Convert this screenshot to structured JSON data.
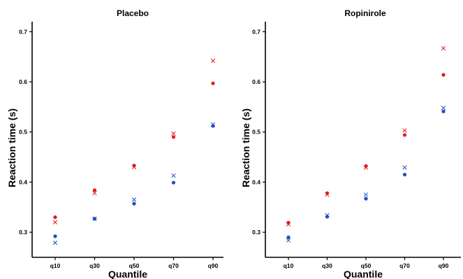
{
  "chart_data": [
    {
      "type": "scatter",
      "title": "Placebo",
      "xlabel": "Quantile",
      "ylabel": "Reaction time (s)",
      "categories": [
        "q10",
        "q30",
        "q50",
        "q70",
        "q90"
      ],
      "ylim": [
        0.25,
        0.72
      ],
      "yticks": [
        0.3,
        0.4,
        0.5,
        0.6,
        0.7
      ],
      "yticklabels": [
        "0.3",
        "0.4",
        "0.5",
        "0.6",
        "0.7"
      ],
      "grid": false,
      "series": [
        {
          "marker": "circle",
          "color": "#e41a1c",
          "values": [
            0.33,
            0.384,
            0.433,
            0.49,
            0.597
          ]
        },
        {
          "marker": "cross",
          "color": "#e41a1c",
          "values": [
            0.32,
            0.378,
            0.43,
            0.497,
            0.642
          ]
        },
        {
          "marker": "circle",
          "color": "#1f4fbf",
          "values": [
            0.292,
            0.327,
            0.357,
            0.399,
            0.512
          ]
        },
        {
          "marker": "cross",
          "color": "#1f4fbf",
          "values": [
            0.279,
            0.327,
            0.365,
            0.413,
            0.515
          ]
        }
      ]
    },
    {
      "type": "scatter",
      "title": "Ropinirole",
      "xlabel": "Quantile",
      "ylabel": "Reaction time (s)",
      "categories": [
        "q10",
        "q30",
        "q50",
        "q70",
        "q90"
      ],
      "ylim": [
        0.25,
        0.72
      ],
      "yticks": [
        0.3,
        0.4,
        0.5,
        0.6,
        0.7
      ],
      "yticklabels": [
        "0.3",
        "0.4",
        "0.5",
        "0.6",
        "0.7"
      ],
      "grid": false,
      "series": [
        {
          "marker": "circle",
          "color": "#e41a1c",
          "values": [
            0.319,
            0.378,
            0.432,
            0.494,
            0.614
          ]
        },
        {
          "marker": "cross",
          "color": "#e41a1c",
          "values": [
            0.316,
            0.375,
            0.429,
            0.503,
            0.667
          ]
        },
        {
          "marker": "circle",
          "color": "#1f4fbf",
          "values": [
            0.29,
            0.331,
            0.367,
            0.415,
            0.541
          ]
        },
        {
          "marker": "cross",
          "color": "#1f4fbf",
          "values": [
            0.284,
            0.334,
            0.375,
            0.429,
            0.548
          ]
        }
      ]
    }
  ]
}
